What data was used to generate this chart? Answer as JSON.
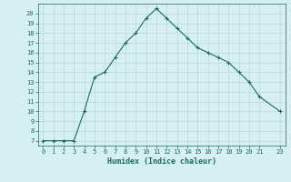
{
  "x": [
    0,
    1,
    2,
    3,
    4,
    5,
    6,
    7,
    8,
    9,
    10,
    11,
    12,
    13,
    14,
    15,
    16,
    17,
    18,
    19,
    20,
    21,
    23
  ],
  "y": [
    7,
    7,
    7,
    7,
    10,
    13.5,
    14,
    15.5,
    17,
    18,
    19.5,
    20.5,
    19.5,
    18.5,
    17.5,
    16.5,
    16,
    15.5,
    15,
    14,
    13,
    11.5,
    10
  ],
  "line_color": "#1a6b5a",
  "marker": "+",
  "marker_size": 3,
  "bg_color": "#d6f0f0",
  "grid_color": "#b8d8d8",
  "xlabel": "Humidex (Indice chaleur)",
  "xlim": [
    -0.5,
    23.5
  ],
  "ylim": [
    6.5,
    21.0
  ],
  "yticks": [
    7,
    8,
    9,
    10,
    11,
    12,
    13,
    14,
    15,
    16,
    17,
    18,
    19,
    20
  ],
  "xticks": [
    0,
    1,
    2,
    3,
    4,
    5,
    6,
    7,
    8,
    9,
    10,
    11,
    12,
    13,
    14,
    15,
    16,
    17,
    18,
    19,
    20,
    21,
    23
  ],
  "tick_color": "#1a6b5a",
  "xlabel_color": "#1a6b5a",
  "linewidth": 0.8,
  "markeredgewidth": 0.8,
  "tick_fontsize": 5,
  "xlabel_fontsize": 6
}
